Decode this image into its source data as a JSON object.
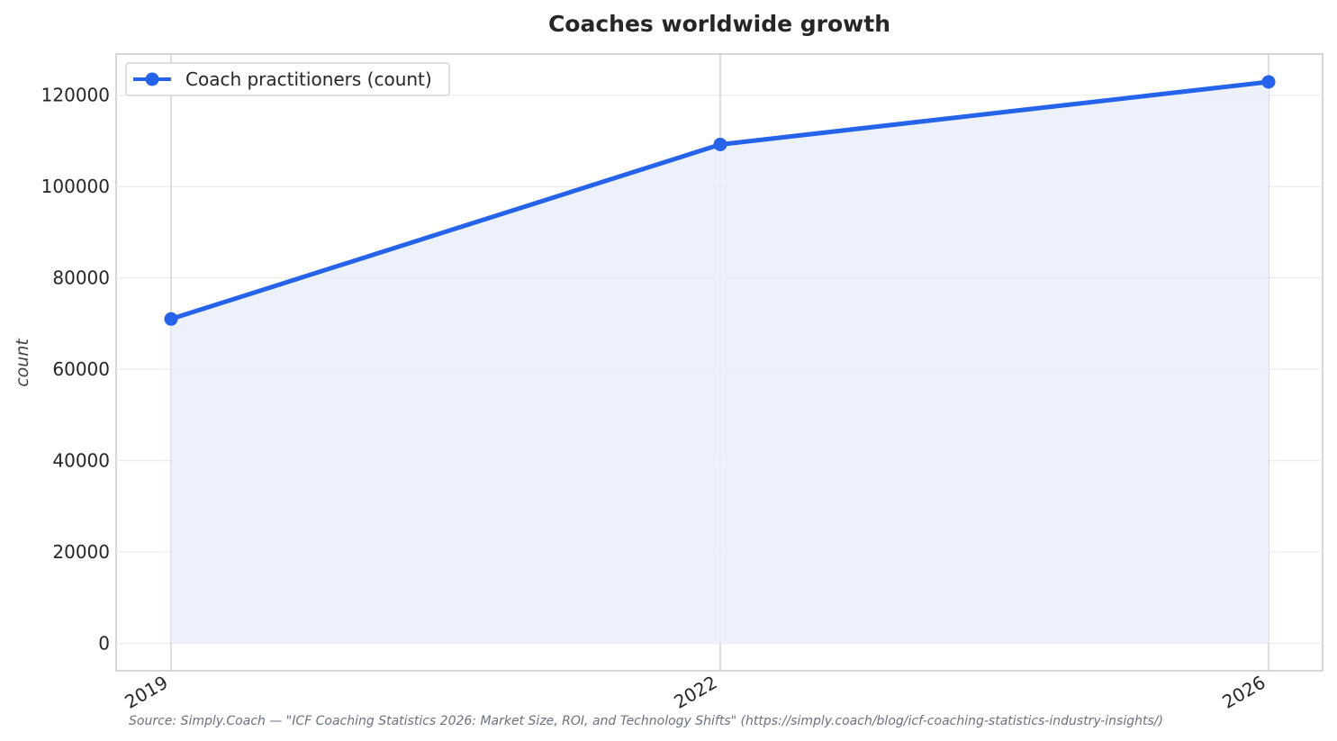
{
  "chart_data": {
    "type": "line",
    "title": "Coaches worldwide growth",
    "xlabel": "",
    "ylabel": "count",
    "x": [
      "2019",
      "2022",
      "2026"
    ],
    "series": [
      {
        "name": "Coach practitioners (count)",
        "values": [
          71000,
          109200,
          122900
        ],
        "color": "#2563eb",
        "fill": "#eaf0fc"
      }
    ],
    "yticks": [
      0,
      20000,
      40000,
      60000,
      80000,
      100000,
      120000
    ],
    "ylim": [
      -6000,
      129000
    ],
    "grid": true,
    "legend": "top-left",
    "x_tick_rotation": "rotated"
  },
  "source_note": "Source: Simply.Coach — \"ICF Coaching Statistics 2026: Market Size, ROI, and Technology Shifts\" (https://simply.coach/blog/icf-coaching-statistics-industry-insights/)"
}
